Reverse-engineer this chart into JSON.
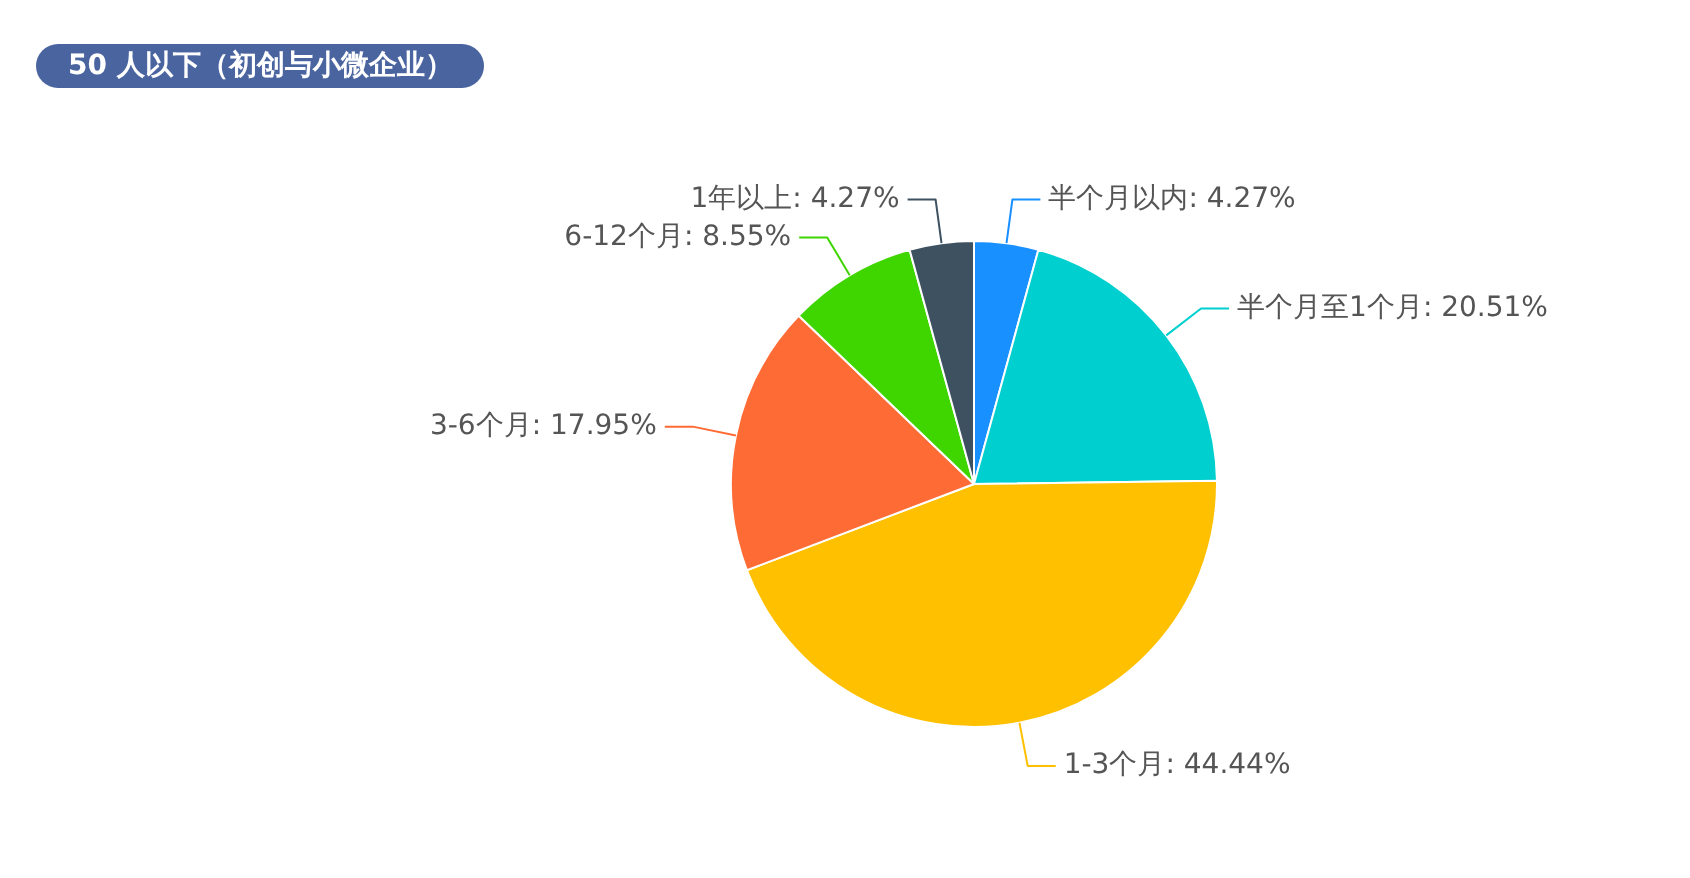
{
  "chart_data": {
    "type": "pie",
    "title": "50 人以下（初创与小微企业）",
    "categories": [
      "半个月以内",
      "半个月至1个月",
      "1-3个月",
      "3-6个月",
      "6-12个月",
      "1年以上"
    ],
    "values": [
      4.27,
      20.51,
      44.44,
      17.95,
      8.55,
      4.27
    ],
    "colors": [
      "#1890ff",
      "#00cfcf",
      "#ffc000",
      "#ff6b35",
      "#3fd600",
      "#3d5160"
    ],
    "value_labels": [
      "4.27%",
      "20.51%",
      "44.44%",
      "17.95%",
      "8.55%",
      "4.27%"
    ],
    "legend": false
  }
}
